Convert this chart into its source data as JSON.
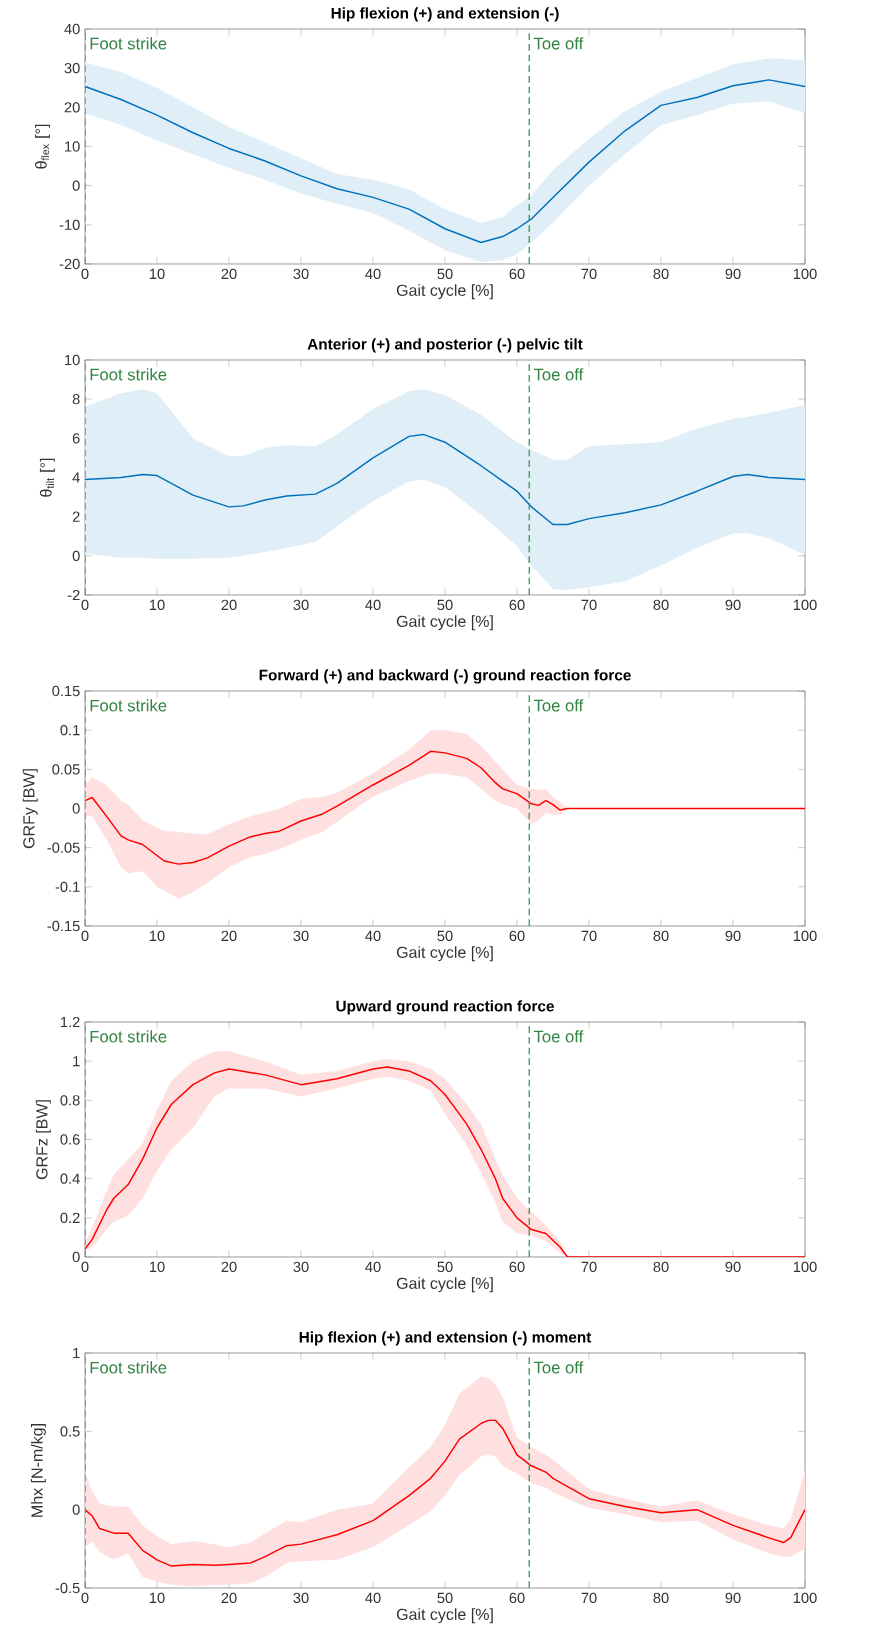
{
  "chart_data": [
    {
      "type": "line",
      "title": "Hip flexion (+) and extension (-)",
      "xlabel": "Gait cycle [%]",
      "ylabel": "θ$_{flex}$ [°]",
      "xlim": [
        0,
        100
      ],
      "ylim": [
        -20,
        40
      ],
      "xticks": [
        0,
        10,
        20,
        30,
        40,
        50,
        60,
        70,
        80,
        90,
        100
      ],
      "yticks": [
        -20,
        -10,
        0,
        10,
        20,
        30,
        40
      ],
      "ref_lines": [
        {
          "axis": "x",
          "value": 0,
          "label": "Foot strike",
          "color": "#3a9a4e",
          "line_style": "dashed"
        },
        {
          "axis": "x",
          "value": 61.7,
          "label": "Toe off",
          "color": "#3a9a4e",
          "line_style": "dashed"
        }
      ],
      "x": [
        0,
        5,
        10,
        15,
        20,
        25,
        30,
        35,
        40,
        45,
        50,
        55,
        58,
        60,
        62,
        65,
        70,
        75,
        80,
        85,
        90,
        95,
        100
      ],
      "series": [
        {
          "color": "#0072bd",
          "values": [
            25.3,
            22,
            18,
            13.5,
            9.5,
            6.3,
            2.5,
            -0.8,
            -3,
            -6,
            -11,
            -14.5,
            -13,
            -11,
            -8.5,
            -3,
            6,
            14,
            20.5,
            22.5,
            25.5,
            27,
            25.3
          ],
          "upper": [
            31.5,
            29,
            25,
            20,
            15,
            11,
            7,
            3,
            1.5,
            -1,
            -6,
            -9.5,
            -8,
            -5,
            -2.5,
            4,
            12,
            19,
            24,
            27.5,
            31,
            32.5,
            32
          ],
          "lower": [
            18.5,
            15.5,
            11.5,
            8,
            4.5,
            1.5,
            -2,
            -4.6,
            -7,
            -11.5,
            -16.5,
            -19.5,
            -19,
            -17.5,
            -14.5,
            -9.5,
            0,
            8,
            15.5,
            18,
            21,
            21.5,
            18.5
          ]
        }
      ]
    },
    {
      "type": "line",
      "title": "Anterior (+) and posterior (-) pelvic tilt",
      "xlabel": "Gait cycle [%]",
      "ylabel": "θ$_{tilt}$ [°]",
      "xlim": [
        0,
        100
      ],
      "ylim": [
        -2,
        10
      ],
      "xticks": [
        0,
        10,
        20,
        30,
        40,
        50,
        60,
        70,
        80,
        90,
        100
      ],
      "yticks": [
        -2,
        0,
        2,
        4,
        6,
        8,
        10
      ],
      "ref_lines": [
        {
          "axis": "x",
          "value": 0,
          "label": "Foot strike",
          "color": "#3a9a4e",
          "line_style": "dashed"
        },
        {
          "axis": "x",
          "value": 61.7,
          "label": "Toe off",
          "color": "#3a9a4e",
          "line_style": "dashed"
        }
      ],
      "x": [
        0,
        5,
        8,
        10,
        15,
        20,
        22,
        25,
        28,
        32,
        35,
        40,
        45,
        47,
        50,
        55,
        60,
        62,
        65,
        67,
        70,
        75,
        80,
        85,
        90,
        92,
        95,
        100
      ],
      "series": [
        {
          "color": "#0072bd",
          "values": [
            3.9,
            4.0,
            4.15,
            4.1,
            3.1,
            2.5,
            2.55,
            2.85,
            3.05,
            3.15,
            3.7,
            5.0,
            6.1,
            6.2,
            5.8,
            4.6,
            3.3,
            2.5,
            1.6,
            1.6,
            1.9,
            2.2,
            2.6,
            3.3,
            4.05,
            4.15,
            4.0,
            3.9
          ],
          "upper": [
            7.6,
            8.3,
            8.5,
            8.3,
            6.0,
            5.1,
            5.1,
            5.5,
            5.65,
            5.6,
            6.2,
            7.5,
            8.4,
            8.5,
            8.2,
            7.2,
            5.8,
            5.4,
            4.9,
            4.9,
            5.6,
            5.7,
            5.8,
            6.5,
            7.0,
            7.1,
            7.3,
            7.7
          ],
          "lower": [
            0.1,
            -0.1,
            -0.1,
            -0.15,
            -0.15,
            -0.1,
            0,
            0.2,
            0.4,
            0.7,
            1.5,
            2.8,
            3.8,
            3.9,
            3.5,
            2.1,
            0.5,
            -0.5,
            -1.7,
            -1.75,
            -1.6,
            -1.3,
            -0.5,
            0.4,
            1.15,
            1.15,
            0.9,
            0.05
          ]
        }
      ]
    },
    {
      "type": "line",
      "title": "Forward (+) and backward (-) ground reaction force",
      "xlabel": "Gait cycle [%]",
      "ylabel": "GRFy [BW]",
      "xlim": [
        0,
        100
      ],
      "ylim": [
        -0.15,
        0.15
      ],
      "xticks": [
        0,
        10,
        20,
        30,
        40,
        50,
        60,
        70,
        80,
        90,
        100
      ],
      "yticks": [
        -0.15,
        -0.1,
        -0.05,
        0,
        0.05,
        0.1,
        0.15
      ],
      "ref_lines": [
        {
          "axis": "x",
          "value": 0,
          "label": "Foot strike",
          "color": "#3a9a4e",
          "line_style": "dashed"
        },
        {
          "axis": "x",
          "value": 61.7,
          "label": "Toe off",
          "color": "#3a9a4e",
          "line_style": "dashed"
        }
      ],
      "x": [
        0,
        1,
        3,
        5,
        6,
        8,
        10,
        11,
        13,
        15,
        17,
        20,
        23,
        25,
        27,
        30,
        33,
        35,
        40,
        45,
        48,
        50,
        53,
        55,
        57,
        58,
        60,
        62,
        63,
        64,
        65,
        66,
        67,
        70,
        100
      ],
      "series": [
        {
          "color": "#ff0000",
          "values": [
            0.01,
            0.014,
            -0.01,
            -0.035,
            -0.04,
            -0.046,
            -0.06,
            -0.067,
            -0.071,
            -0.069,
            -0.063,
            -0.048,
            -0.036,
            -0.032,
            -0.029,
            -0.016,
            -0.007,
            0.003,
            0.03,
            0.055,
            0.073,
            0.071,
            0.064,
            0.052,
            0.033,
            0.025,
            0.019,
            0.006,
            0.004,
            0.01,
            0.005,
            -0.002,
            0,
            0,
            0
          ],
          "upper": [
            0.03,
            0.04,
            0.03,
            0.01,
            0.005,
            -0.015,
            -0.025,
            -0.028,
            -0.03,
            -0.032,
            -0.033,
            -0.02,
            -0.01,
            -0.005,
            0,
            0.012,
            0.015,
            0.02,
            0.045,
            0.075,
            0.1,
            0.1,
            0.095,
            0.08,
            0.06,
            0.05,
            0.03,
            0.025,
            0.024,
            0.025,
            0.015,
            0.008,
            0,
            0,
            0
          ],
          "lower": [
            -0.01,
            -0.01,
            -0.04,
            -0.075,
            -0.083,
            -0.08,
            -0.1,
            -0.105,
            -0.115,
            -0.107,
            -0.095,
            -0.075,
            -0.062,
            -0.058,
            -0.052,
            -0.04,
            -0.03,
            -0.017,
            0.015,
            0.035,
            0.045,
            0.044,
            0.04,
            0.025,
            0.01,
            0.005,
            0,
            -0.02,
            -0.015,
            -0.005,
            -0.008,
            -0.008,
            0,
            0,
            0
          ]
        }
      ]
    },
    {
      "type": "line",
      "title": "Upward ground reaction force",
      "xlabel": "Gait cycle [%]",
      "ylabel": "GRFz [BW]",
      "xlim": [
        0,
        100
      ],
      "ylim": [
        0,
        1.2
      ],
      "xticks": [
        0,
        10,
        20,
        30,
        40,
        50,
        60,
        70,
        80,
        90,
        100
      ],
      "yticks": [
        0,
        0.2,
        0.4,
        0.6,
        0.8,
        1,
        1.2
      ],
      "ref_lines": [
        {
          "axis": "x",
          "value": 0,
          "label": "Foot strike",
          "color": "#3a9a4e",
          "line_style": "dashed"
        },
        {
          "axis": "x",
          "value": 61.7,
          "label": "Toe off",
          "color": "#3a9a4e",
          "line_style": "dashed"
        }
      ],
      "x": [
        0,
        1,
        3,
        4,
        6,
        8,
        10,
        12,
        15,
        18,
        20,
        25,
        30,
        35,
        40,
        42,
        45,
        48,
        50,
        53,
        55,
        57,
        58,
        60,
        62,
        64,
        66,
        67,
        70,
        100
      ],
      "series": [
        {
          "color": "#ff0000",
          "values": [
            0.04,
            0.09,
            0.24,
            0.3,
            0.37,
            0.5,
            0.66,
            0.78,
            0.88,
            0.94,
            0.96,
            0.93,
            0.88,
            0.91,
            0.96,
            0.97,
            0.95,
            0.9,
            0.83,
            0.68,
            0.55,
            0.4,
            0.3,
            0.2,
            0.14,
            0.12,
            0.05,
            0,
            0,
            0
          ],
          "upper": [
            0.07,
            0.15,
            0.34,
            0.42,
            0.5,
            0.58,
            0.75,
            0.9,
            1.0,
            1.05,
            1.05,
            1.0,
            0.93,
            0.95,
            1.0,
            1.01,
            1.0,
            0.96,
            0.91,
            0.78,
            0.68,
            0.5,
            0.42,
            0.3,
            0.23,
            0.16,
            0.08,
            0,
            0,
            0
          ],
          "lower": [
            0.03,
            0.05,
            0.14,
            0.18,
            0.21,
            0.3,
            0.44,
            0.55,
            0.66,
            0.82,
            0.86,
            0.86,
            0.82,
            0.86,
            0.91,
            0.92,
            0.9,
            0.85,
            0.73,
            0.57,
            0.43,
            0.28,
            0.18,
            0.12,
            0.11,
            0.08,
            0.02,
            0,
            0,
            0
          ]
        }
      ]
    },
    {
      "type": "line",
      "title": "Hip flexion (+) and extension (-) moment",
      "xlabel": "Gait cycle [%]",
      "ylabel": "Mhx [N-m/kg]",
      "xlim": [
        0,
        100
      ],
      "ylim": [
        -0.5,
        1
      ],
      "xticks": [
        0,
        10,
        20,
        30,
        40,
        50,
        60,
        70,
        80,
        90,
        100
      ],
      "yticks": [
        -0.5,
        0,
        0.5,
        1
      ],
      "ref_lines": [
        {
          "axis": "x",
          "value": 0,
          "label": "Foot strike",
          "color": "#3a9a4e",
          "line_style": "dashed"
        },
        {
          "axis": "x",
          "value": 61.7,
          "label": "Toe off",
          "color": "#3a9a4e",
          "line_style": "dashed"
        }
      ],
      "x": [
        0,
        1,
        2,
        4,
        6,
        8,
        10,
        12,
        15,
        18,
        20,
        23,
        25,
        28,
        30,
        35,
        40,
        45,
        48,
        50,
        52,
        55,
        56,
        57,
        58,
        60,
        62,
        64,
        65,
        70,
        75,
        80,
        85,
        90,
        95,
        97,
        98,
        100
      ],
      "series": [
        {
          "color": "#ff0000",
          "values": [
            0,
            -0.04,
            -0.12,
            -0.15,
            -0.15,
            -0.26,
            -0.32,
            -0.36,
            -0.35,
            -0.355,
            -0.35,
            -0.34,
            -0.3,
            -0.23,
            -0.22,
            -0.16,
            -0.07,
            0.09,
            0.2,
            0.31,
            0.45,
            0.55,
            0.57,
            0.57,
            0.52,
            0.35,
            0.28,
            0.24,
            0.2,
            0.07,
            0.02,
            -0.02,
            0,
            -0.1,
            -0.18,
            -0.21,
            -0.18,
            0
          ],
          "upper": [
            0.24,
            0.12,
            0.04,
            0.02,
            0.02,
            -0.1,
            -0.17,
            -0.22,
            -0.2,
            -0.22,
            -0.24,
            -0.21,
            -0.15,
            -0.07,
            -0.08,
            0.0,
            0.04,
            0.27,
            0.4,
            0.54,
            0.74,
            0.85,
            0.84,
            0.8,
            0.72,
            0.46,
            0.4,
            0.35,
            0.32,
            0.13,
            0.07,
            0.02,
            0.06,
            -0.03,
            -0.1,
            -0.12,
            -0.06,
            0.25
          ],
          "lower": [
            -0.24,
            -0.2,
            -0.27,
            -0.32,
            -0.28,
            -0.43,
            -0.46,
            -0.48,
            -0.49,
            -0.48,
            -0.48,
            -0.47,
            -0.43,
            -0.34,
            -0.33,
            -0.32,
            -0.24,
            -0.1,
            -0.01,
            0.09,
            0.22,
            0.34,
            0.35,
            0.34,
            0.28,
            0.23,
            0.17,
            0.14,
            0.11,
            0.01,
            -0.03,
            -0.08,
            -0.07,
            -0.19,
            -0.28,
            -0.3,
            -0.3,
            -0.25
          ]
        }
      ]
    }
  ]
}
